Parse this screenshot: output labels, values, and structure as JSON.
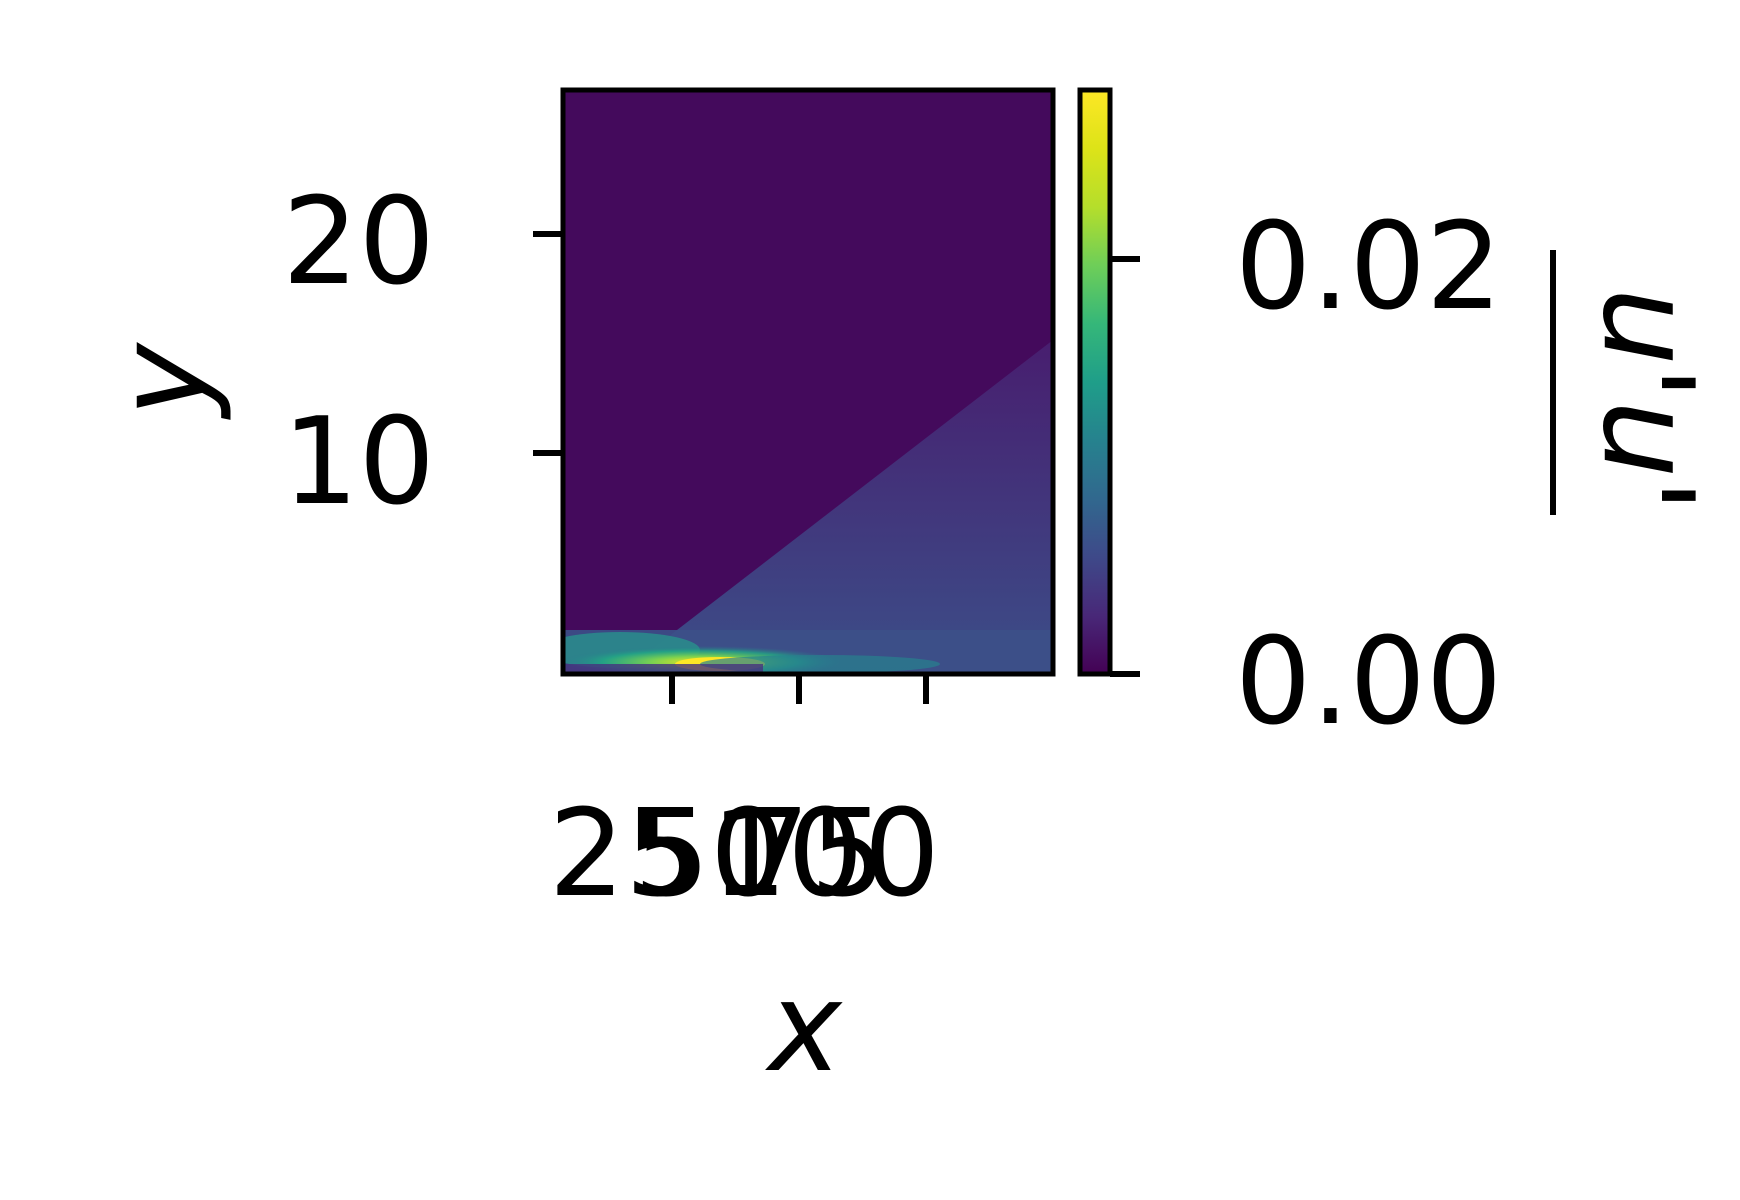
{
  "chart_data": {
    "type": "heatmap",
    "title": "",
    "xlabel": "x",
    "ylabel": "y",
    "x_ticks": [
      {
        "value": 25,
        "label": "25"
      },
      {
        "value": 50,
        "label": "50"
      },
      {
        "value": 75,
        "label": "75"
      },
      {
        "value": 100,
        "label": "100"
      }
    ],
    "y_ticks": [
      {
        "value": 10,
        "label": "10"
      },
      {
        "value": 20,
        "label": "20"
      }
    ],
    "xlim": [
      3,
      100
    ],
    "ylim": [
      0,
      26.6
    ],
    "colorbar": {
      "label": "u'u'",
      "colormap": "viridis",
      "range": [
        0.0,
        0.027
      ],
      "ticks": [
        {
          "value": 0.0,
          "label": "0.00"
        },
        {
          "value": 0.02,
          "label": "0.02"
        }
      ]
    },
    "field_description": [
      {
        "x": 10,
        "y": 0.5,
        "value": 0.018
      },
      {
        "x": 30,
        "y": 0.3,
        "value": 0.027
      },
      {
        "x": 60,
        "y": 0.6,
        "value": 0.011
      },
      {
        "x": 90,
        "y": 1.0,
        "value": 0.008
      },
      {
        "x": 90,
        "y": 8.0,
        "value": 0.004
      },
      {
        "x": 50,
        "y": 20.0,
        "value": 0.0005
      }
    ]
  }
}
